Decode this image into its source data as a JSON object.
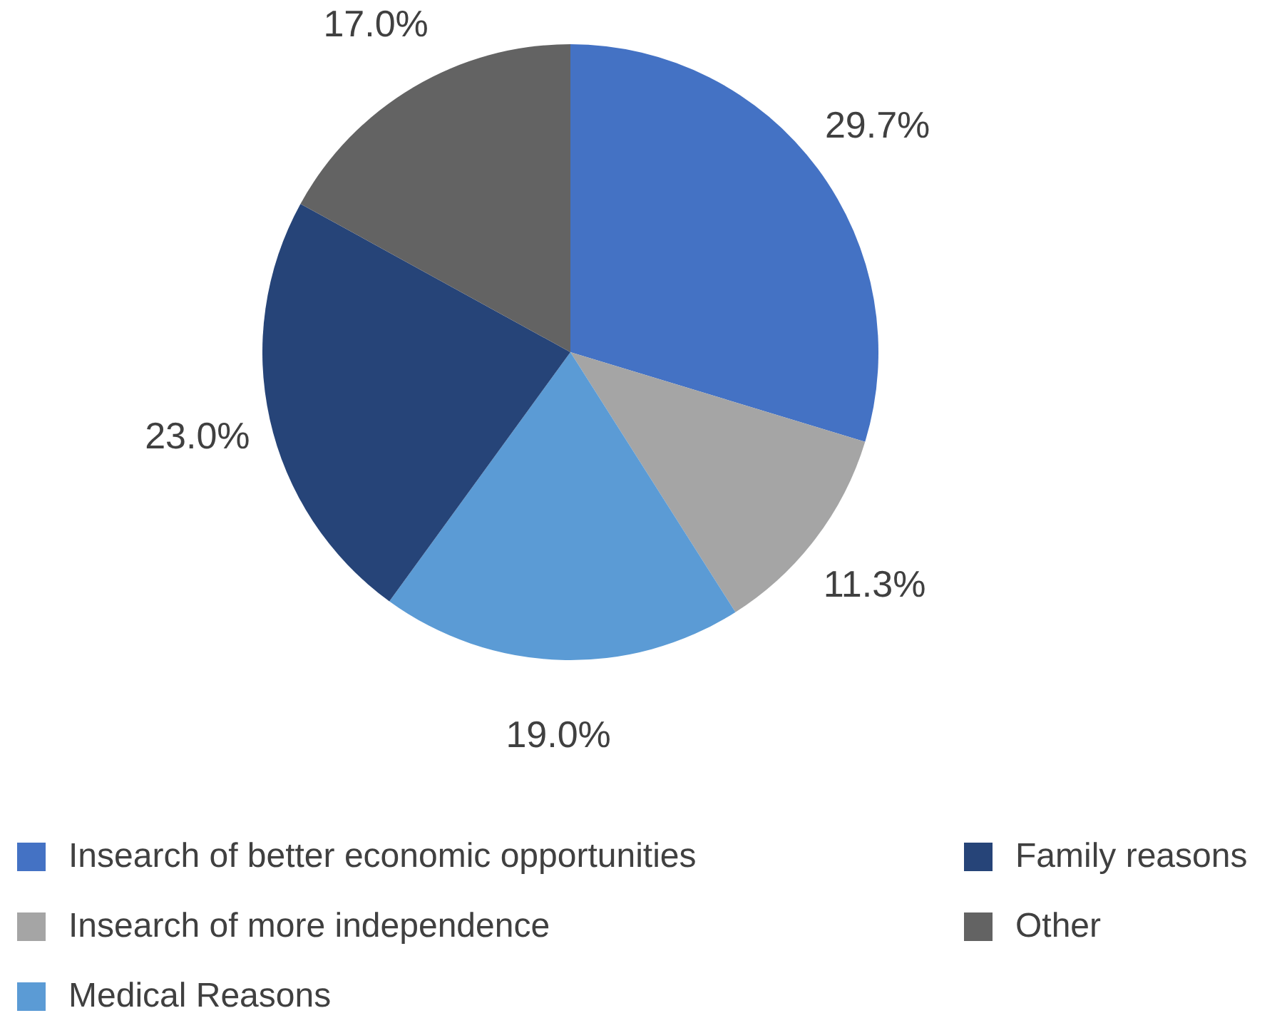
{
  "chart_data": {
    "type": "pie",
    "categories": [
      "Insearch of better economic opportunities",
      "Insearch of more independence",
      "Medical Reasons",
      "Family reasons",
      "Other"
    ],
    "values": [
      29.7,
      11.3,
      19.0,
      23.0,
      17.0
    ],
    "colors": [
      "#4472c4",
      "#a5a5a5",
      "#5b9bd5",
      "#264478",
      "#636363"
    ],
    "value_labels": [
      "29.7%",
      "11.3%",
      "19.0%",
      "23.0%",
      "17.0%"
    ],
    "legend": "bottom"
  }
}
